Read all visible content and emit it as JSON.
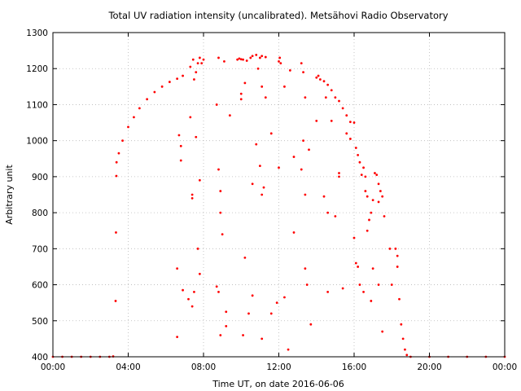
{
  "chart_data": {
    "type": "scatter",
    "title": "Total UV radiation intensity (uncalibrated). Metsähovi Radio Observatory",
    "xlabel": "Time UT, on date 2016-06-06",
    "ylabel": "Arbitrary unit",
    "x_unit": "hours",
    "xlim": [
      0,
      24
    ],
    "ylim": [
      400,
      1300
    ],
    "x_ticks": [
      0,
      4,
      8,
      12,
      16,
      20,
      24
    ],
    "x_tick_labels": [
      "00:00",
      "04:00",
      "08:00",
      "12:00",
      "16:00",
      "20:00",
      "00:00"
    ],
    "y_ticks": [
      400,
      500,
      600,
      700,
      800,
      900,
      1000,
      1100,
      1200,
      1300
    ],
    "y_tick_labels": [
      "400",
      "500",
      "600",
      "700",
      "800",
      "900",
      "1000",
      "1100",
      "1200",
      "1300"
    ],
    "grid": true,
    "legend": "none",
    "marker_color": "#ff0000",
    "series": [
      {
        "points": [
          [
            0.0,
            400
          ],
          [
            0.5,
            400
          ],
          [
            1.0,
            400
          ],
          [
            1.5,
            400
          ],
          [
            2.0,
            400
          ],
          [
            2.5,
            400
          ],
          [
            3.0,
            400
          ],
          [
            3.2,
            401
          ],
          [
            3.33,
            555
          ],
          [
            3.35,
            745
          ],
          [
            3.37,
            902
          ],
          [
            3.38,
            940
          ],
          [
            3.5,
            965
          ],
          [
            3.7,
            1000
          ],
          [
            4.0,
            1038
          ],
          [
            4.3,
            1065
          ],
          [
            4.6,
            1090
          ],
          [
            5.0,
            1115
          ],
          [
            5.4,
            1135
          ],
          [
            5.8,
            1150
          ],
          [
            6.2,
            1163
          ],
          [
            6.6,
            1172
          ],
          [
            6.9,
            1180
          ],
          [
            6.6,
            645
          ],
          [
            6.7,
            1015
          ],
          [
            6.8,
            985
          ],
          [
            6.8,
            945
          ],
          [
            6.6,
            455
          ],
          [
            6.9,
            585
          ],
          [
            7.3,
            1205
          ],
          [
            7.45,
            1225
          ],
          [
            7.6,
            1190
          ],
          [
            7.7,
            1215
          ],
          [
            7.8,
            1230
          ],
          [
            7.5,
            1170
          ],
          [
            7.6,
            1010
          ],
          [
            7.3,
            1065
          ],
          [
            7.4,
            840
          ],
          [
            7.4,
            850
          ],
          [
            7.5,
            580
          ],
          [
            7.7,
            700
          ],
          [
            7.8,
            890
          ],
          [
            7.9,
            1215
          ],
          [
            7.2,
            560
          ],
          [
            7.4,
            540
          ],
          [
            7.8,
            630
          ],
          [
            8.0,
            1225
          ],
          [
            8.8,
            1230
          ],
          [
            8.7,
            1100
          ],
          [
            8.8,
            920
          ],
          [
            8.9,
            860
          ],
          [
            8.9,
            800
          ],
          [
            9.0,
            740
          ],
          [
            9.1,
            1220
          ],
          [
            9.2,
            525
          ],
          [
            8.7,
            595
          ],
          [
            8.8,
            580
          ],
          [
            8.9,
            460
          ],
          [
            9.2,
            485
          ],
          [
            9.4,
            1070
          ],
          [
            9.8,
            1225
          ],
          [
            9.9,
            1228
          ],
          [
            10.0,
            1226
          ],
          [
            10.1,
            1225
          ],
          [
            10.3,
            1222
          ],
          [
            10.5,
            1230
          ],
          [
            10.6,
            1235
          ],
          [
            10.8,
            1238
          ],
          [
            11.0,
            1230
          ],
          [
            11.1,
            1235
          ],
          [
            11.3,
            1232
          ],
          [
            10.0,
            1130
          ],
          [
            10.0,
            1115
          ],
          [
            10.2,
            1160
          ],
          [
            10.2,
            675
          ],
          [
            10.4,
            520
          ],
          [
            10.6,
            880
          ],
          [
            10.8,
            990
          ],
          [
            11.0,
            930
          ],
          [
            11.1,
            850
          ],
          [
            11.2,
            870
          ],
          [
            11.1,
            1150
          ],
          [
            10.9,
            1200
          ],
          [
            11.3,
            1120
          ],
          [
            11.6,
            1020
          ],
          [
            10.1,
            460
          ],
          [
            10.6,
            570
          ],
          [
            11.1,
            450
          ],
          [
            11.6,
            520
          ],
          [
            11.9,
            550
          ],
          [
            12.0,
            1220
          ],
          [
            12.05,
            1230
          ],
          [
            12.1,
            1215
          ],
          [
            12.0,
            925
          ],
          [
            12.3,
            1150
          ],
          [
            12.6,
            1195
          ],
          [
            12.8,
            955
          ],
          [
            12.8,
            745
          ],
          [
            12.3,
            565
          ],
          [
            12.5,
            420
          ],
          [
            13.2,
            1215
          ],
          [
            13.3,
            1190
          ],
          [
            13.4,
            1120
          ],
          [
            13.3,
            1000
          ],
          [
            13.6,
            975
          ],
          [
            13.2,
            920
          ],
          [
            13.4,
            645
          ],
          [
            13.5,
            600
          ],
          [
            13.4,
            850
          ],
          [
            13.7,
            490
          ],
          [
            14.0,
            1175
          ],
          [
            14.1,
            1180
          ],
          [
            14.2,
            1170
          ],
          [
            14.4,
            1165
          ],
          [
            14.6,
            1155
          ],
          [
            14.8,
            1140
          ],
          [
            15.0,
            1120
          ],
          [
            15.2,
            1110
          ],
          [
            15.4,
            1090
          ],
          [
            15.6,
            1070
          ],
          [
            15.8,
            1052
          ],
          [
            14.5,
            1120
          ],
          [
            14.8,
            1055
          ],
          [
            15.2,
            910
          ],
          [
            15.2,
            900
          ],
          [
            15.4,
            590
          ],
          [
            15.6,
            1020
          ],
          [
            15.8,
            1005
          ],
          [
            14.0,
            1055
          ],
          [
            14.4,
            845
          ],
          [
            14.6,
            800
          ],
          [
            15.0,
            790
          ],
          [
            14.6,
            580
          ],
          [
            16.0,
            1050
          ],
          [
            16.1,
            980
          ],
          [
            16.2,
            960
          ],
          [
            16.3,
            940
          ],
          [
            16.4,
            905
          ],
          [
            16.5,
            925
          ],
          [
            16.6,
            900
          ],
          [
            16.6,
            860
          ],
          [
            16.7,
            845
          ],
          [
            16.8,
            780
          ],
          [
            16.9,
            800
          ],
          [
            17.0,
            835
          ],
          [
            17.1,
            910
          ],
          [
            17.2,
            905
          ],
          [
            17.3,
            880
          ],
          [
            17.4,
            860
          ],
          [
            17.5,
            845
          ],
          [
            17.3,
            830
          ],
          [
            17.6,
            790
          ],
          [
            16.0,
            730
          ],
          [
            16.1,
            660
          ],
          [
            16.2,
            650
          ],
          [
            16.3,
            600
          ],
          [
            16.5,
            580
          ],
          [
            16.7,
            750
          ],
          [
            16.9,
            555
          ],
          [
            17.0,
            645
          ],
          [
            17.3,
            600
          ],
          [
            17.5,
            470
          ],
          [
            17.9,
            700
          ],
          [
            18.0,
            600
          ],
          [
            18.2,
            700
          ],
          [
            18.3,
            680
          ],
          [
            18.3,
            650
          ],
          [
            18.4,
            560
          ],
          [
            18.5,
            490
          ],
          [
            18.6,
            450
          ],
          [
            18.7,
            420
          ],
          [
            18.8,
            405
          ],
          [
            19.0,
            400
          ],
          [
            20.0,
            400
          ],
          [
            21.0,
            400
          ],
          [
            22.0,
            400
          ],
          [
            23.0,
            400
          ],
          [
            24.0,
            400
          ]
        ]
      }
    ]
  }
}
